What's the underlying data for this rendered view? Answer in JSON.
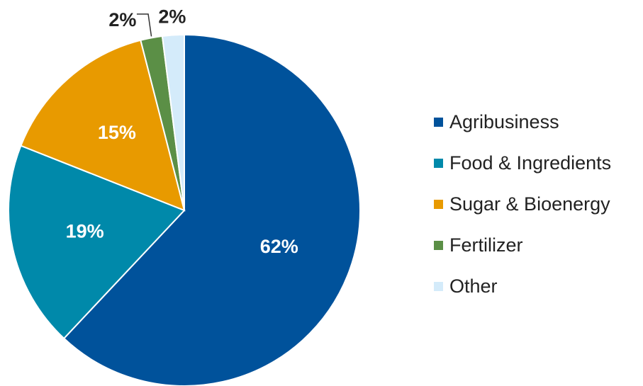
{
  "chart_data": {
    "type": "pie",
    "categories": [
      "Agribusiness",
      "Food & Ingredients",
      "Sugar & Bioenergy",
      "Fertilizer",
      "Other"
    ],
    "values": [
      62,
      19,
      15,
      2,
      2
    ],
    "value_labels": [
      "62%",
      "19%",
      "15%",
      "2%",
      "2%"
    ],
    "colors": [
      "#00529b",
      "#0089aa",
      "#e89a00",
      "#5b8f46",
      "#d4ebfa"
    ],
    "legend": "right"
  }
}
